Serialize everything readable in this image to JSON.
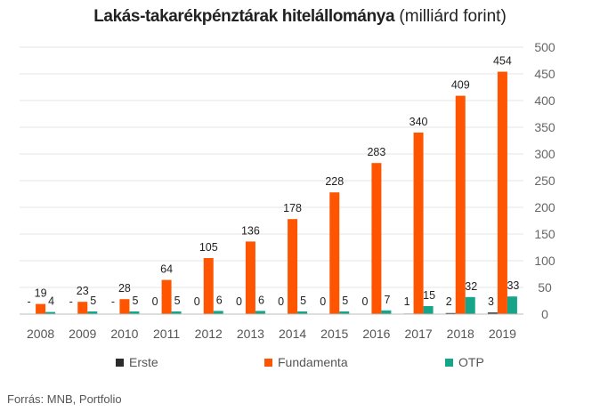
{
  "title": "Lakás-takarékpénztárak hitelállománya",
  "title_unit": "(milliárd forint)",
  "source": "Forrás: MNB, Portfolio",
  "chart_data": {
    "type": "bar",
    "title": "Lakás-takarékpénztárak hitelállománya (milliárd forint)",
    "categories": [
      "2008",
      "2009",
      "2010",
      "2011",
      "2012",
      "2013",
      "2014",
      "2015",
      "2016",
      "2017",
      "2018",
      "2019"
    ],
    "series": [
      {
        "name": "Erste",
        "color": "#2b2b2b",
        "values": [
          null,
          null,
          null,
          0,
          0,
          0,
          0,
          0,
          0,
          1,
          2,
          3
        ],
        "labels": [
          "-",
          "-",
          "-",
          "0",
          "0",
          "0",
          "0",
          "0",
          "0",
          "1",
          "2",
          "3"
        ]
      },
      {
        "name": "Fundamenta",
        "color": "#ff5500",
        "values": [
          19,
          23,
          28,
          64,
          105,
          136,
          178,
          228,
          283,
          340,
          409,
          454
        ],
        "labels": [
          "19",
          "23",
          "28",
          "64",
          "105",
          "136",
          "178",
          "228",
          "283",
          "340",
          "409",
          "454"
        ]
      },
      {
        "name": "OTP",
        "color": "#17a589",
        "values": [
          4,
          5,
          5,
          5,
          6,
          6,
          5,
          5,
          7,
          15,
          32,
          33
        ],
        "labels": [
          "4",
          "5",
          "5",
          "5",
          "6",
          "6",
          "5",
          "5",
          "7",
          "15",
          "32",
          "33"
        ]
      }
    ],
    "ylim": [
      0,
      500
    ],
    "yticks": [
      0,
      50,
      100,
      150,
      200,
      250,
      300,
      350,
      400,
      450,
      500
    ],
    "y_axis_side": "right",
    "grid": true,
    "legend_position": "bottom"
  }
}
